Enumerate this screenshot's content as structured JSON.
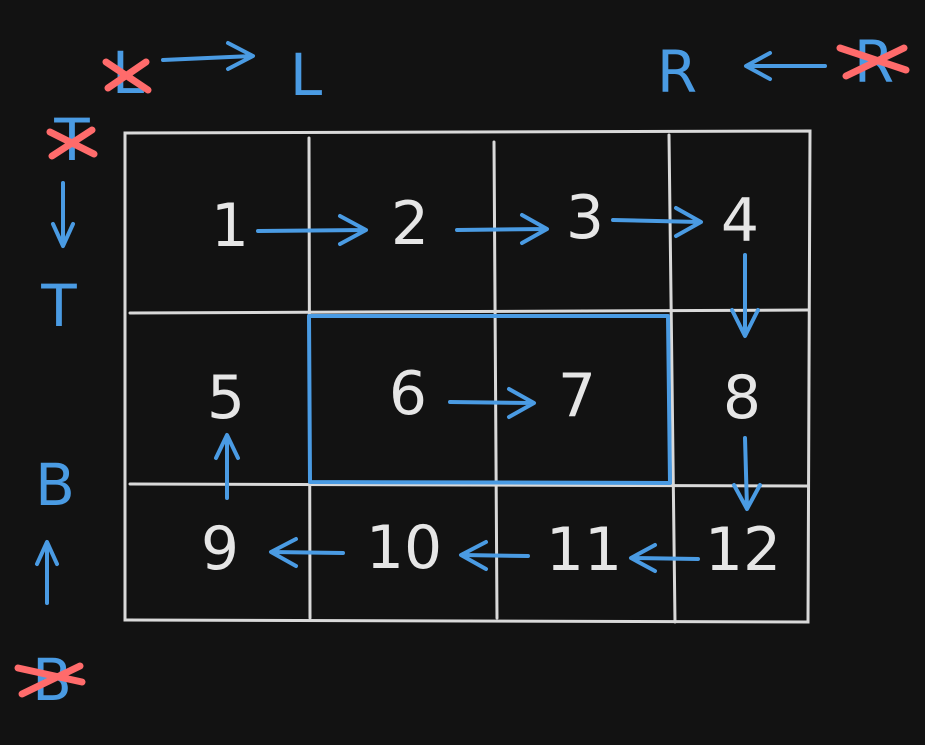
{
  "labels": {
    "left_old": "L",
    "left_new": "L",
    "right_new": "R",
    "right_old": "R",
    "top_old": "T",
    "top_new": "T",
    "bottom_new": "B",
    "bottom_old": "B"
  },
  "cells": [
    "1",
    "2",
    "3",
    "4",
    "5",
    "6",
    "7",
    "8",
    "9",
    "10",
    "11",
    "12"
  ],
  "colors": {
    "background": "#121212",
    "accent": "#4a9be3",
    "strike": "#ff6b6b",
    "grid": "#d9d9d9"
  }
}
